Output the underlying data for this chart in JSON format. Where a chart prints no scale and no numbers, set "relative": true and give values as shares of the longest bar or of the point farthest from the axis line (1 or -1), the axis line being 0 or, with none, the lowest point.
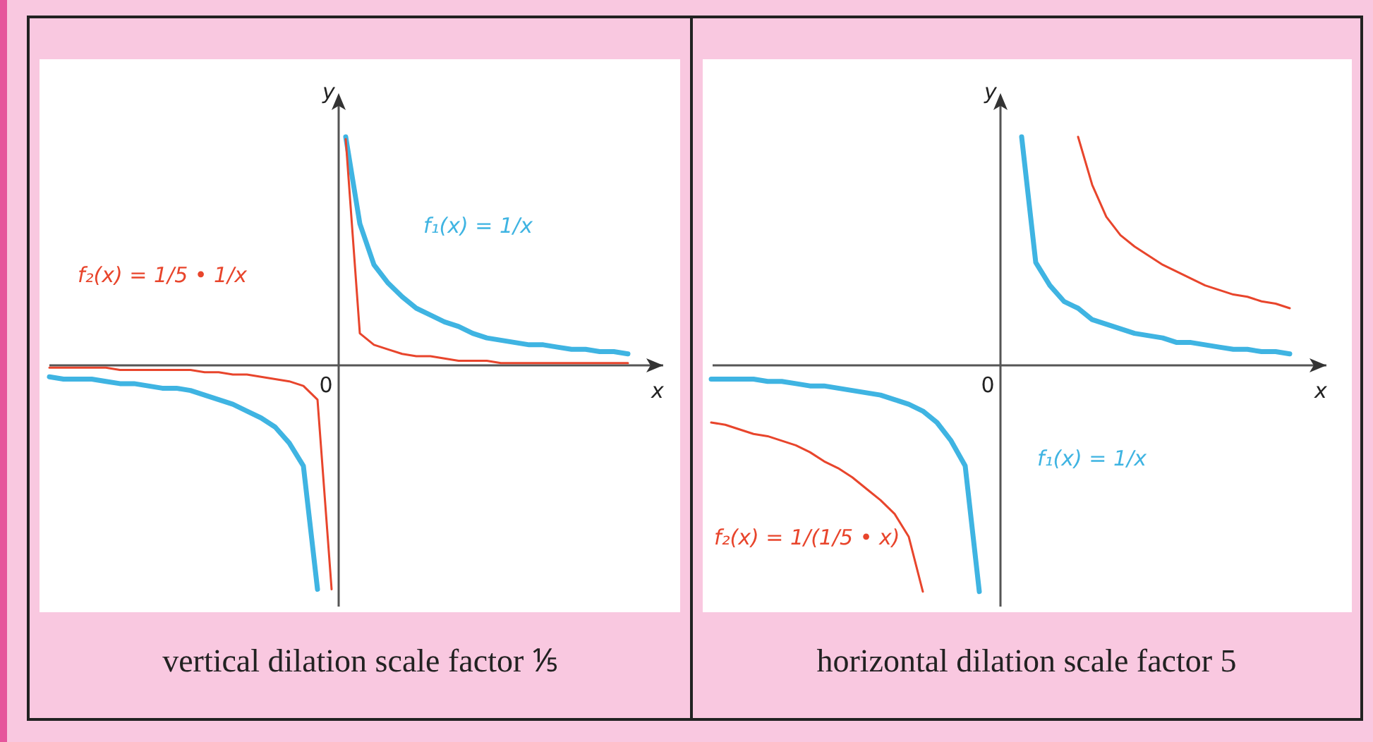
{
  "chart_data": [
    {
      "type": "line",
      "title": "vertical dilation scale factor ⅕",
      "xlabel": "x",
      "ylabel": "y",
      "relative": true,
      "legend": false,
      "annotations": [
        "0"
      ],
      "categories": [
        null,
        null,
        null,
        null,
        null,
        null,
        null,
        null,
        null,
        null,
        null,
        null,
        null,
        null,
        null,
        null,
        null,
        null,
        null,
        null,
        null,
        null,
        null,
        null,
        null,
        null,
        null,
        null,
        null,
        null,
        null,
        null,
        null,
        null,
        null,
        null,
        null,
        null,
        null,
        null,
        null,
        null
      ],
      "series": [
        {
          "color": "#3fb4e2",
          "values": [
            -0.05,
            -0.06,
            -0.06,
            -0.06,
            -0.07,
            -0.08,
            -0.08,
            -0.09,
            -0.1,
            -0.1,
            -0.11,
            -0.13,
            -0.15,
            -0.17,
            -0.2,
            -0.23,
            -0.27,
            -0.34,
            -0.44,
            -0.98,
            null,
            null,
            null,
            null,
            null,
            null,
            null,
            null,
            null,
            null,
            null,
            null,
            null,
            null,
            null,
            null,
            null,
            null,
            null,
            null,
            null,
            null
          ]
        },
        {
          "name": "f₁(x) = 1/x",
          "color": "#3fb4e2",
          "values": [
            null,
            null,
            null,
            null,
            null,
            null,
            null,
            null,
            null,
            null,
            null,
            null,
            null,
            null,
            null,
            null,
            null,
            null,
            null,
            null,
            null,
            1.0,
            0.62,
            0.44,
            0.36,
            0.3,
            0.25,
            0.22,
            0.19,
            0.17,
            0.14,
            0.12,
            0.11,
            0.1,
            0.09,
            0.09,
            0.08,
            0.07,
            0.07,
            0.06,
            0.06,
            0.05
          ]
        },
        {
          "name": "f₂(x) = 1/5 • 1/x",
          "color": "#e8452c",
          "values": [
            -0.01,
            -0.01,
            -0.01,
            -0.01,
            -0.01,
            -0.02,
            -0.02,
            -0.02,
            -0.02,
            -0.02,
            -0.02,
            -0.03,
            -0.03,
            -0.04,
            -0.04,
            -0.05,
            -0.06,
            -0.07,
            -0.09,
            -0.15,
            -0.98,
            null,
            null,
            null,
            null,
            null,
            null,
            null,
            null,
            null,
            null,
            null,
            null,
            null,
            null,
            null,
            null,
            null,
            null,
            null,
            null,
            null
          ]
        },
        {
          "color": "#e8452c",
          "values": [
            null,
            null,
            null,
            null,
            null,
            null,
            null,
            null,
            null,
            null,
            null,
            null,
            null,
            null,
            null,
            null,
            null,
            null,
            null,
            null,
            null,
            0.99,
            0.14,
            0.09,
            0.07,
            0.05,
            0.04,
            0.04,
            0.03,
            0.02,
            0.02,
            0.02,
            0.01,
            0.01,
            0.01,
            0.01,
            0.01,
            0.01,
            0.01,
            0.01,
            0.01,
            0.01
          ]
        }
      ]
    },
    {
      "type": "line",
      "title": "horizontal dilation scale factor 5",
      "xlabel": "x",
      "ylabel": "y",
      "relative": true,
      "legend": false,
      "annotations": [
        "0"
      ],
      "categories": [
        null,
        null,
        null,
        null,
        null,
        null,
        null,
        null,
        null,
        null,
        null,
        null,
        null,
        null,
        null,
        null,
        null,
        null,
        null,
        null,
        null,
        null,
        null,
        null,
        null,
        null,
        null,
        null,
        null,
        null,
        null,
        null,
        null,
        null,
        null,
        null,
        null,
        null,
        null,
        null,
        null,
        null
      ],
      "series": [
        {
          "color": "#3fb4e2",
          "values": [
            -0.06,
            -0.06,
            -0.06,
            -0.06,
            -0.07,
            -0.07,
            -0.08,
            -0.09,
            -0.09,
            -0.1,
            -0.11,
            -0.12,
            -0.13,
            -0.15,
            -0.17,
            -0.2,
            -0.25,
            -0.33,
            -0.44,
            -0.99,
            null,
            null,
            null,
            null,
            null,
            null,
            null,
            null,
            null,
            null,
            null,
            null,
            null,
            null,
            null,
            null,
            null,
            null,
            null,
            null,
            null,
            null
          ]
        },
        {
          "name": "f₁(x) = 1/x",
          "color": "#3fb4e2",
          "values": [
            null,
            null,
            null,
            null,
            null,
            null,
            null,
            null,
            null,
            null,
            null,
            null,
            null,
            null,
            null,
            null,
            null,
            null,
            null,
            null,
            null,
            null,
            1.0,
            0.45,
            0.35,
            0.28,
            0.25,
            0.2,
            0.18,
            0.16,
            0.14,
            0.13,
            0.12,
            0.1,
            0.1,
            0.09,
            0.08,
            0.07,
            0.07,
            0.06,
            0.06,
            0.05
          ]
        },
        {
          "name": "f₂(x) = 1/(1/5 • x)",
          "color": "#e8452c",
          "values": [
            -0.25,
            -0.26,
            -0.28,
            -0.3,
            -0.31,
            -0.33,
            -0.35,
            -0.38,
            -0.42,
            -0.45,
            -0.49,
            -0.54,
            -0.59,
            -0.65,
            -0.75,
            -0.99,
            null,
            null,
            null,
            null,
            null,
            null,
            null,
            null,
            null,
            null,
            null,
            null,
            null,
            null,
            null,
            null,
            null,
            null,
            null,
            null,
            null,
            null,
            null,
            null,
            null,
            null
          ]
        },
        {
          "color": "#e8452c",
          "values": [
            null,
            null,
            null,
            null,
            null,
            null,
            null,
            null,
            null,
            null,
            null,
            null,
            null,
            null,
            null,
            null,
            null,
            null,
            null,
            null,
            null,
            null,
            null,
            null,
            null,
            null,
            1.0,
            0.79,
            0.65,
            0.57,
            0.52,
            0.48,
            0.44,
            0.41,
            0.38,
            0.35,
            0.33,
            0.31,
            0.3,
            0.28,
            0.27,
            0.25
          ]
        }
      ]
    }
  ]
}
